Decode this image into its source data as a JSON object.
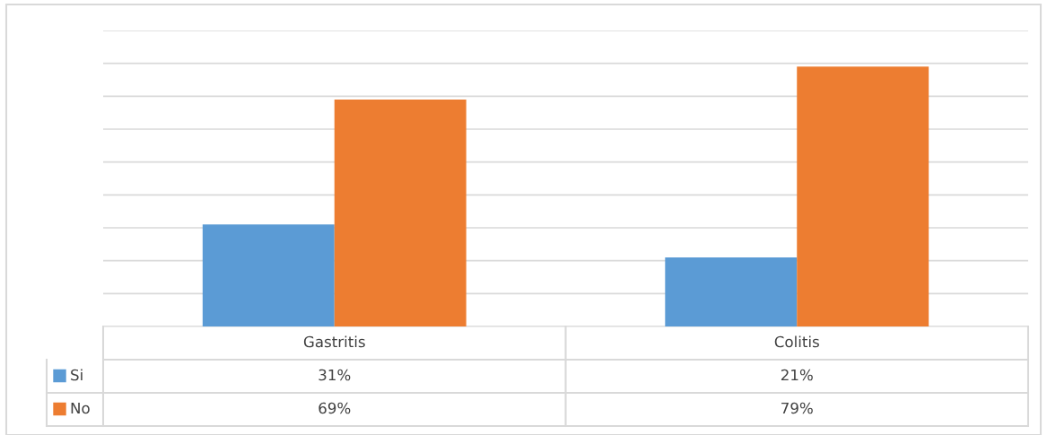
{
  "chart_data": {
    "type": "bar",
    "categories": [
      "Gastritis",
      "Colitis"
    ],
    "series": [
      {
        "name": "Si",
        "color": "#5b9bd5",
        "values": [
          31,
          21
        ],
        "value_labels": [
          "31%",
          "21%"
        ]
      },
      {
        "name": "No",
        "color": "#ed7d31",
        "values": [
          69,
          79
        ],
        "value_labels": [
          "69%",
          "79%"
        ]
      }
    ],
    "ylim": [
      0,
      90
    ],
    "yticks": [
      {
        "value": 0,
        "label": null
      },
      {
        "value": 10,
        "label": null
      },
      {
        "value": 20,
        "label": null
      },
      {
        "value": 30,
        "label": null
      },
      {
        "value": 40,
        "label": null
      },
      {
        "value": 50,
        "label": null
      },
      {
        "value": 60,
        "label": null
      },
      {
        "value": 70,
        "label": null
      },
      {
        "value": 80,
        "label": null
      },
      {
        "value": 90,
        "label": null
      }
    ],
    "grid": "y",
    "tick_labels": "x",
    "legend": "bottom"
  }
}
